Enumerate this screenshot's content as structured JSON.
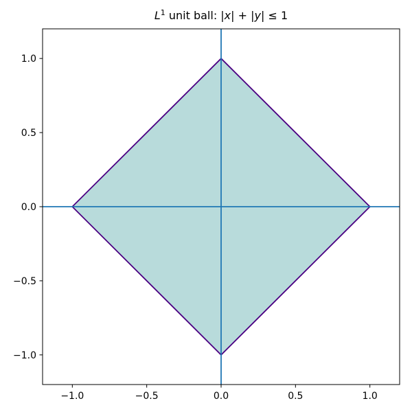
{
  "title": {
    "text": "L¹ unit ball: |x| + |y| ≤ 1",
    "segments": [
      {
        "text": "L",
        "style": "italic"
      },
      {
        "text": "1",
        "style": "sup"
      },
      {
        "text": " unit ball: |",
        "style": "normal"
      },
      {
        "text": "x",
        "style": "italic"
      },
      {
        "text": "| + |",
        "style": "normal"
      },
      {
        "text": "y",
        "style": "italic"
      },
      {
        "text": "| ≤ 1",
        "style": "normal"
      }
    ]
  },
  "chart_data": {
    "type": "area",
    "title": "L¹ unit ball: |x| + |y| ≤ 1",
    "xlabel": "",
    "ylabel": "",
    "xlim": [
      -1.2,
      1.2
    ],
    "ylim": [
      -1.2,
      1.2
    ],
    "grid": false,
    "legend": null,
    "xticks": {
      "values": [
        -1.0,
        -0.5,
        0.0,
        0.5,
        1.0
      ],
      "labels": [
        "−1.0",
        "−0.5",
        "0.0",
        "0.5",
        "1.0"
      ]
    },
    "yticks": {
      "values": [
        -1.0,
        -0.5,
        0.0,
        0.5,
        1.0
      ],
      "labels": [
        "−1.0",
        "−0.5",
        "0.0",
        "0.5",
        "1.0"
      ]
    },
    "series": [
      {
        "name": "l1-unit-ball",
        "kind": "filled-polygon",
        "vertices": [
          [
            1,
            0
          ],
          [
            0,
            1
          ],
          [
            -1,
            0
          ],
          [
            0,
            -1
          ]
        ],
        "fill_color": "#b8dbdb",
        "edge_color": "#4b0082",
        "edge_width": 1.8
      }
    ],
    "reference_lines": [
      {
        "name": "x-axis-line",
        "axis": "horizontal",
        "value": 0,
        "color": "#1f77b4",
        "width": 1.8
      },
      {
        "name": "y-axis-line",
        "axis": "vertical",
        "value": 0,
        "color": "#1f77b4",
        "width": 1.8
      }
    ],
    "colors": {
      "plot_border": "#000000",
      "tick": "#000000",
      "tick_label": "#000000",
      "background": "#ffffff"
    }
  }
}
